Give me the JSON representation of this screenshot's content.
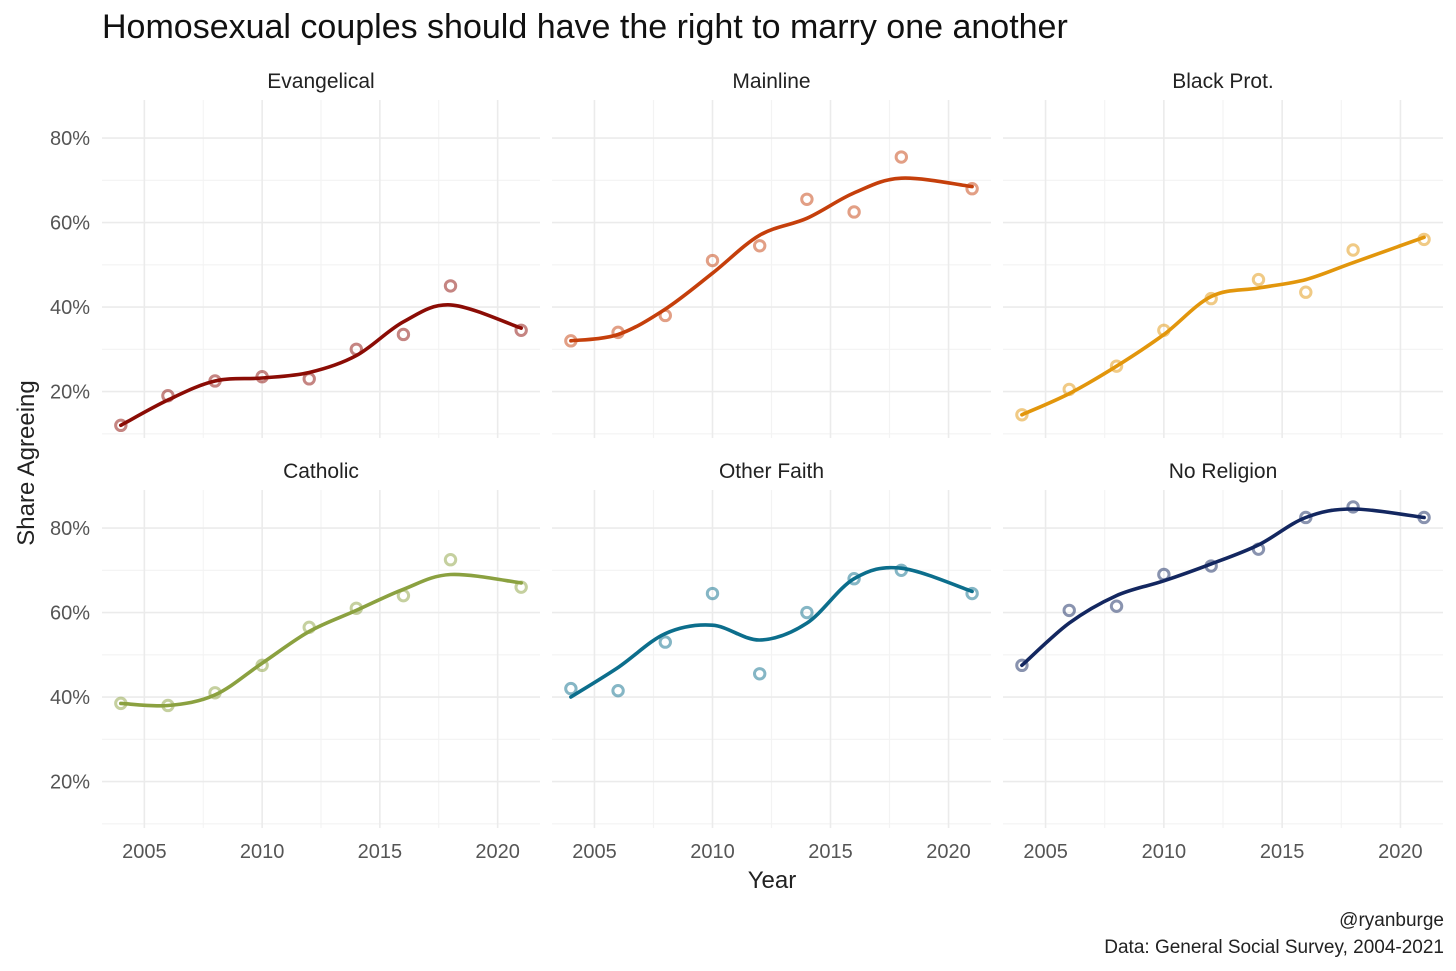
{
  "title": "Homosexual couples should have the right to marry one another",
  "caption": {
    "handle": "@ryanburge",
    "source": "Data: General Social Survey, 2004-2021"
  },
  "chart_data": {
    "type": "scatter",
    "title": "Homosexual couples should have the right to marry one another",
    "xlabel": "Year",
    "ylabel": "Share Agreeing",
    "x": [
      2004,
      2006,
      2008,
      2010,
      2012,
      2014,
      2016,
      2018,
      2021
    ],
    "x_ticks": [
      2005,
      2010,
      2015,
      2020
    ],
    "x_tick_labels": [
      "2005",
      "2010",
      "2015",
      "2020"
    ],
    "xlim": [
      2003.2,
      2021.8
    ],
    "y_ticks": [
      0.2,
      0.4,
      0.6,
      0.8
    ],
    "y_tick_labels": [
      "20%",
      "40%",
      "60%",
      "80%"
    ],
    "ylim": [
      0.09,
      0.89
    ],
    "grid": true,
    "legend": "none",
    "trend": "loess smoothed line",
    "panels": [
      {
        "name": "Evangelical",
        "color": "#8B0C05",
        "values": [
          0.12,
          0.19,
          0.225,
          0.235,
          0.23,
          0.3,
          0.335,
          0.45,
          0.345
        ],
        "trend": [
          0.12,
          0.18,
          0.225,
          0.232,
          0.245,
          0.285,
          0.365,
          0.405,
          0.35
        ]
      },
      {
        "name": "Mainline",
        "color": "#C53F0B",
        "values": [
          0.32,
          0.34,
          0.38,
          0.51,
          0.545,
          0.655,
          0.625,
          0.755,
          0.68
        ],
        "trend": [
          0.32,
          0.335,
          0.395,
          0.48,
          0.57,
          0.61,
          0.67,
          0.705,
          0.685
        ]
      },
      {
        "name": "Black Prot.",
        "color": "#E2960C",
        "values": [
          0.145,
          0.205,
          0.26,
          0.345,
          0.42,
          0.465,
          0.435,
          0.535,
          0.56
        ],
        "trend": [
          0.145,
          0.195,
          0.26,
          0.335,
          0.425,
          0.445,
          0.465,
          0.505,
          0.565
        ]
      },
      {
        "name": "Catholic",
        "color": "#8BA140",
        "values": [
          0.385,
          0.38,
          0.41,
          0.475,
          0.565,
          0.61,
          0.64,
          0.725,
          0.66
        ],
        "trend": [
          0.385,
          0.38,
          0.405,
          0.48,
          0.555,
          0.605,
          0.655,
          0.69,
          0.67
        ]
      },
      {
        "name": "Other Faith",
        "color": "#0C6E8C",
        "values": [
          0.42,
          0.415,
          0.53,
          0.645,
          0.455,
          0.6,
          0.68,
          0.7,
          0.645
        ],
        "trend": [
          0.4,
          0.47,
          0.55,
          0.57,
          0.535,
          0.575,
          0.68,
          0.705,
          0.65
        ]
      },
      {
        "name": "No Religion",
        "color": "#132760",
        "values": [
          0.475,
          0.605,
          0.615,
          0.69,
          0.71,
          0.75,
          0.825,
          0.85,
          0.825
        ],
        "trend": [
          0.475,
          0.575,
          0.64,
          0.675,
          0.715,
          0.76,
          0.825,
          0.845,
          0.825
        ]
      }
    ]
  }
}
